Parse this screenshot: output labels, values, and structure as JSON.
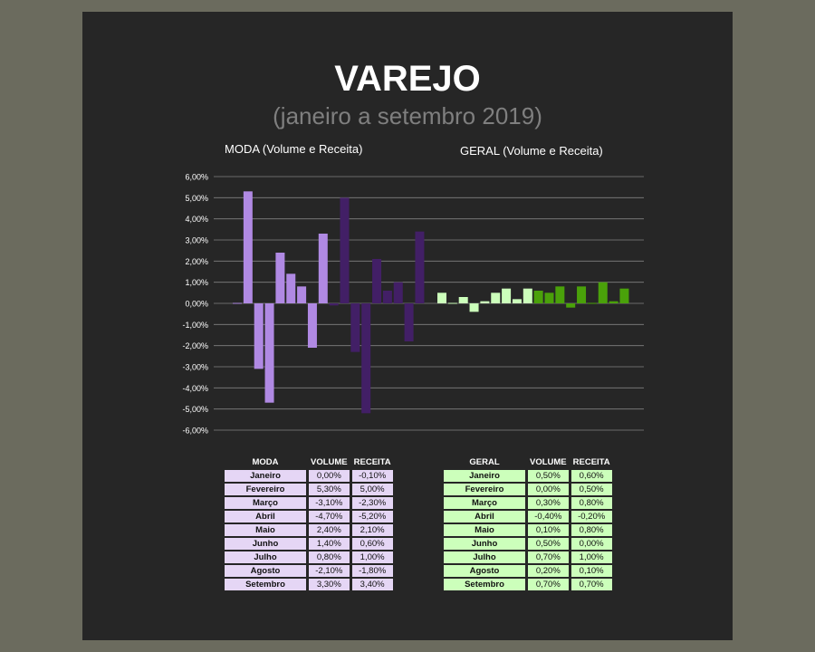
{
  "title": "VAREJO",
  "subtitle": "(janeiro a setembro 2019)",
  "moda_label": "MODA (Volume e Receita)",
  "geral_label": "GERAL  (Volume e Receita)",
  "colors": {
    "moda_volume": "#b089e3",
    "moda_receita": "#421f66",
    "geral_volume": "#ccffbb",
    "geral_receita": "#4aa10a",
    "grid": "#808080",
    "panel": "#262626"
  },
  "chart_data": {
    "type": "bar",
    "yticks": [
      "6,00%",
      "5,00%",
      "4,00%",
      "3,00%",
      "2,00%",
      "1,00%",
      "0,00%",
      "-1,00%",
      "-2,00%",
      "-3,00%",
      "-4,00%",
      "-5,00%",
      "-6,00%"
    ],
    "ylim": [
      -6,
      6
    ],
    "grid": true,
    "categories": [
      "Janeiro",
      "Fevereiro",
      "Março",
      "Abril",
      "Maio",
      "Junho",
      "Julho",
      "Agosto",
      "Setembro"
    ],
    "groups": [
      {
        "name": "MODA (Volume e Receita)",
        "series": [
          {
            "name": "VOLUME",
            "values": [
              0.0,
              5.3,
              -3.1,
              -4.7,
              2.4,
              1.4,
              0.8,
              -2.1,
              3.3
            ]
          },
          {
            "name": "RECEITA",
            "values": [
              -0.1,
              5.0,
              -2.3,
              -5.2,
              2.1,
              0.6,
              1.0,
              -1.8,
              3.4
            ]
          }
        ]
      },
      {
        "name": "GERAL  (Volume e Receita)",
        "series": [
          {
            "name": "VOLUME",
            "values": [
              0.5,
              0.0,
              0.3,
              -0.4,
              0.1,
              0.5,
              0.7,
              0.2,
              0.7
            ]
          },
          {
            "name": "RECEITA",
            "values": [
              0.6,
              0.5,
              0.8,
              -0.2,
              0.8,
              0.0,
              1.0,
              0.1,
              0.7
            ]
          }
        ]
      }
    ]
  },
  "moda_table": {
    "headers": [
      "MODA",
      "VOLUME",
      "RECEITA"
    ],
    "rows": [
      [
        "Janeiro",
        "0,00%",
        "-0,10%"
      ],
      [
        "Fevereiro",
        "5,30%",
        "5,00%"
      ],
      [
        "Março",
        "-3,10%",
        "-2,30%"
      ],
      [
        "Abril",
        "-4,70%",
        "-5,20%"
      ],
      [
        "Maio",
        "2,40%",
        "2,10%"
      ],
      [
        "Junho",
        "1,40%",
        "0,60%"
      ],
      [
        "Julho",
        "0,80%",
        "1,00%"
      ],
      [
        "Agosto",
        "-2,10%",
        "-1,80%"
      ],
      [
        "Setembro",
        "3,30%",
        "3,40%"
      ]
    ]
  },
  "geral_table": {
    "headers": [
      "GERAL",
      "VOLUME",
      "RECEITA"
    ],
    "rows": [
      [
        "Janeiro",
        "0,50%",
        "0,60%"
      ],
      [
        "Fevereiro",
        "0,00%",
        "0,50%"
      ],
      [
        "Março",
        "0,30%",
        "0,80%"
      ],
      [
        "Abril",
        "-0,40%",
        "-0,20%"
      ],
      [
        "Maio",
        "0,10%",
        "0,80%"
      ],
      [
        "Junho",
        "0,50%",
        "0,00%"
      ],
      [
        "Julho",
        "0,70%",
        "1,00%"
      ],
      [
        "Agosto",
        "0,20%",
        "0,10%"
      ],
      [
        "Setembro",
        "0,70%",
        "0,70%"
      ]
    ]
  }
}
